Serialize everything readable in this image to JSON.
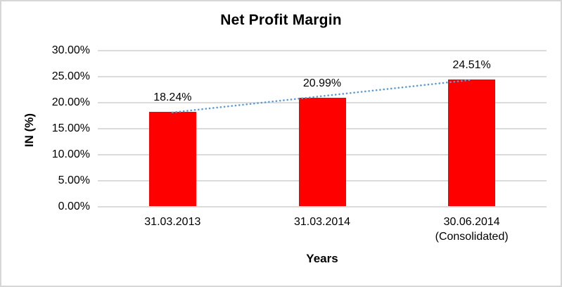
{
  "window": {
    "background_color": "#FFFFFF",
    "border_color": "#D6D6D6"
  },
  "chart_data": {
    "type": "bar",
    "title": "Net Profit Margin",
    "xlabel": "Years",
    "ylabel": "IN (%)",
    "categories": [
      "31.03.2013",
      "31.03.2014",
      "30.06.2014\n(Consolidated)"
    ],
    "series": [
      {
        "name": "Net Profit Margin",
        "values": [
          18.24,
          20.99,
          24.51
        ]
      }
    ],
    "data_labels": [
      "18.24%",
      "20.99%",
      "24.51%"
    ],
    "y_ticks": [
      {
        "value": 0,
        "label": "0.00%"
      },
      {
        "value": 5,
        "label": "5.00%"
      },
      {
        "value": 10,
        "label": "10.00%"
      },
      {
        "value": 15,
        "label": "15.00%"
      },
      {
        "value": 20,
        "label": "20.00%"
      },
      {
        "value": 25,
        "label": "25.00%"
      },
      {
        "value": 30,
        "label": "30.00%"
      }
    ],
    "ylim": [
      0,
      30
    ],
    "grid": true,
    "legend": "none",
    "colors": {
      "bar": "#FF0000",
      "trendline": "#5B9BD5",
      "gridline": "#DBDBDB",
      "text": "#000000"
    },
    "trendline": {
      "type": "linear",
      "style": "dotted",
      "start_value": 18.11,
      "end_value": 24.38
    }
  }
}
